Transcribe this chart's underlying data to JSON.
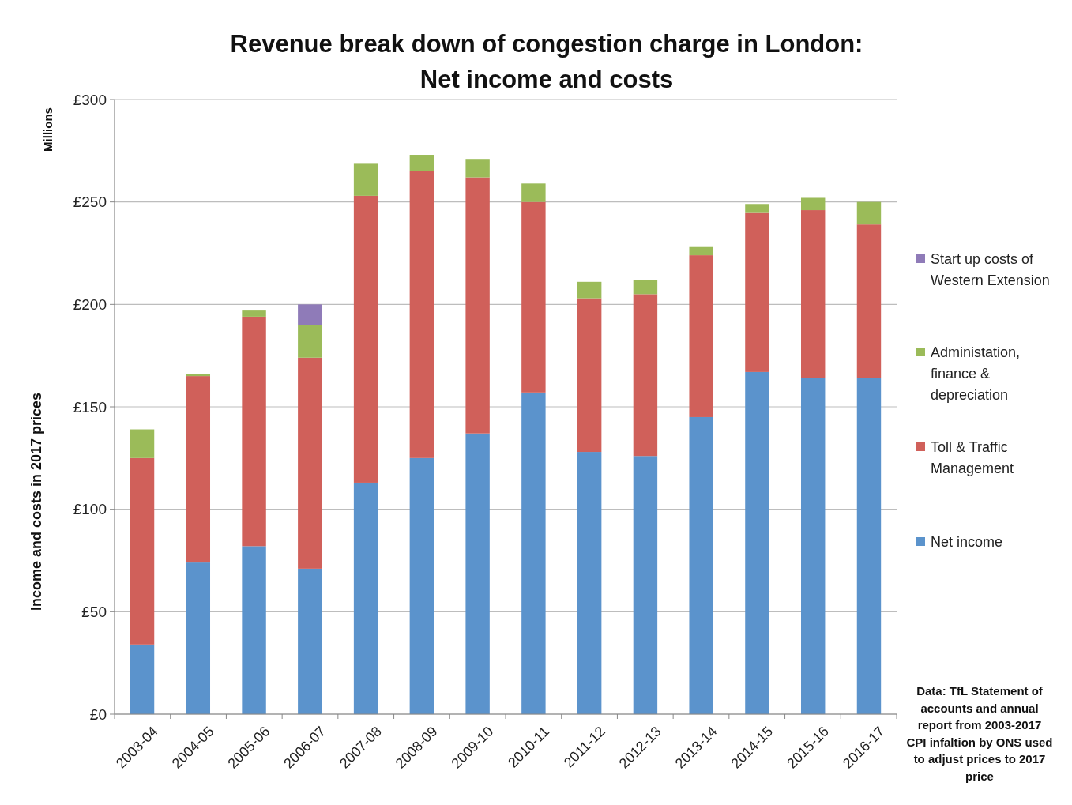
{
  "chart_data": {
    "type": "bar",
    "stacked": true,
    "title": "Revenue break down of congestion charge in London:",
    "subtitle": "Net income and costs",
    "ylabel": "Income and costs in 2017 prices",
    "categories": [
      "2003-04",
      "2004-05",
      "2005-06",
      "2006-07",
      "2007-08",
      "2008-09",
      "2009-10",
      "2010-11",
      "2011-12",
      "2012-13",
      "2013-14",
      "2014-15",
      "2015-16",
      "2016-17"
    ],
    "series": [
      {
        "name": "Net income",
        "color": "#5b93cc",
        "values": [
          34,
          74,
          82,
          71,
          113,
          125,
          137,
          157,
          128,
          126,
          145,
          167,
          164,
          164
        ]
      },
      {
        "name": "Toll & Traffic Management",
        "color": "#d0605a",
        "values": [
          91,
          91,
          112,
          103,
          140,
          140,
          125,
          93,
          75,
          79,
          79,
          78,
          82,
          75
        ]
      },
      {
        "name": "Administation, finance & depreciation",
        "color": "#9bbb59",
        "values": [
          14,
          1,
          3,
          16,
          16,
          8,
          9,
          9,
          8,
          7,
          4,
          4,
          6,
          11
        ]
      },
      {
        "name": "Start up costs of Western Extension",
        "color": "#8f7bb8",
        "values": [
          null,
          null,
          null,
          10,
          null,
          null,
          null,
          null,
          null,
          null,
          null,
          null,
          null,
          null
        ]
      }
    ],
    "ylim": [
      0,
      300
    ],
    "yticks": [
      {
        "value": 0,
        "label": "£0"
      },
      {
        "value": 50,
        "label": "£50"
      },
      {
        "value": 100,
        "label": "£100"
      },
      {
        "value": 150,
        "label": "£150"
      },
      {
        "value": 200,
        "label": "£200"
      },
      {
        "value": 250,
        "label": "£250"
      },
      {
        "value": 300,
        "label": "£300"
      }
    ],
    "grid": "y",
    "legend": "right",
    "annotations": [
      "Millions",
      "Data: TfL Statement of accounts and annual report from 2003-2017",
      "CPI infaltion by ONS used to adjust prices to 2017 price"
    ]
  }
}
